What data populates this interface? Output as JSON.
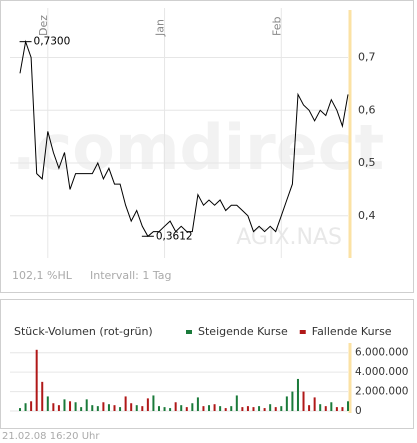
{
  "chart_data": [
    {
      "type": "line",
      "watermark": ".comdirect",
      "symbol": "AGIX.NAS",
      "info": [
        "102,1 %HL",
        "Intervall: 1 Tag"
      ],
      "categories": [
        null,
        null,
        null,
        null,
        null,
        "Dez",
        null,
        null,
        null,
        null,
        null,
        null,
        null,
        null,
        null,
        null,
        null,
        null,
        null,
        null,
        null,
        null,
        null,
        null,
        null,
        null,
        "Jan",
        null,
        null,
        null,
        null,
        null,
        null,
        null,
        null,
        null,
        null,
        null,
        null,
        null,
        null,
        null,
        null,
        null,
        null,
        null,
        null,
        "Feb",
        null,
        null,
        null,
        null,
        null,
        null,
        null,
        null,
        null,
        null,
        null,
        null
      ],
      "values": [
        0.67,
        0.73,
        0.7,
        0.48,
        0.47,
        0.56,
        0.52,
        0.49,
        0.52,
        0.45,
        0.48,
        0.48,
        0.48,
        0.48,
        0.5,
        0.47,
        0.49,
        0.46,
        0.46,
        0.42,
        0.39,
        0.41,
        0.38,
        0.3612,
        0.37,
        0.37,
        0.38,
        0.39,
        0.37,
        0.38,
        0.37,
        0.37,
        0.44,
        0.42,
        0.43,
        0.42,
        0.43,
        0.41,
        0.42,
        0.42,
        0.41,
        0.4,
        0.37,
        0.38,
        0.37,
        0.38,
        0.37,
        0.4,
        0.43,
        0.46,
        0.63,
        0.61,
        0.6,
        0.58,
        0.6,
        0.59,
        0.62,
        0.6,
        0.57,
        0.63
      ],
      "value_labels": [
        null,
        "0,7300",
        null,
        null,
        null,
        null,
        null,
        null,
        null,
        null,
        null,
        null,
        null,
        null,
        null,
        null,
        null,
        null,
        null,
        null,
        null,
        null,
        null,
        "0,3612",
        null,
        null,
        null,
        null,
        null,
        null,
        null,
        null,
        null,
        null,
        null,
        null,
        null,
        null,
        null,
        null,
        null,
        null,
        null,
        null,
        null,
        null,
        null,
        null,
        null,
        null,
        null,
        null,
        null,
        null,
        null,
        null,
        null,
        null,
        null,
        null
      ],
      "color": "#000000",
      "ylim": [
        0.32,
        0.79
      ],
      "yticks": [
        {
          "value": 0.4,
          "label": "0,4"
        },
        {
          "value": 0.5,
          "label": "0,5"
        },
        {
          "value": 0.6,
          "label": "0,6"
        },
        {
          "value": 0.7,
          "label": "0,7"
        }
      ],
      "grid": true
    },
    {
      "type": "bar",
      "title": "Stück-Volumen (rot-grün)",
      "series": [
        {
          "name": "Steigende Kurse",
          "color": "#1a7a3a",
          "values": [
            300000,
            800000,
            null,
            null,
            null,
            1500000,
            null,
            null,
            1200000,
            null,
            900000,
            400000,
            1200000,
            600000,
            500000,
            null,
            700000,
            null,
            400000,
            null,
            null,
            600000,
            null,
            null,
            1600000,
            500000,
            400000,
            300000,
            null,
            600000,
            null,
            800000,
            1400000,
            null,
            600000,
            null,
            500000,
            null,
            500000,
            1600000,
            null,
            null,
            null,
            500000,
            null,
            700000,
            null,
            500000,
            1500000,
            2000000,
            3300000,
            null,
            null,
            null,
            700000,
            null,
            900000,
            null,
            null,
            1000000
          ]
        },
        {
          "name": "Fallende Kurse",
          "color": "#b01818",
          "values": [
            null,
            null,
            1000000,
            6300000,
            3000000,
            null,
            800000,
            600000,
            null,
            1000000,
            null,
            null,
            null,
            null,
            null,
            900000,
            null,
            600000,
            null,
            1500000,
            800000,
            null,
            500000,
            1300000,
            null,
            null,
            null,
            null,
            900000,
            null,
            400000,
            null,
            null,
            500000,
            null,
            700000,
            null,
            300000,
            null,
            null,
            400000,
            500000,
            400000,
            null,
            300000,
            null,
            400000,
            null,
            null,
            null,
            null,
            2000000,
            600000,
            1400000,
            null,
            500000,
            null,
            400000,
            400000,
            null
          ]
        }
      ],
      "ylim": [
        0,
        7000000
      ],
      "yticks": [
        0,
        {
          "value": 2000000,
          "label": "2.000.000"
        },
        {
          "value": 4000000,
          "label": "4.000.000"
        },
        {
          "value": 6000000,
          "label": "6.000.000"
        }
      ],
      "grid": true
    }
  ],
  "footer": "21.02.08 16:20 Uhr"
}
